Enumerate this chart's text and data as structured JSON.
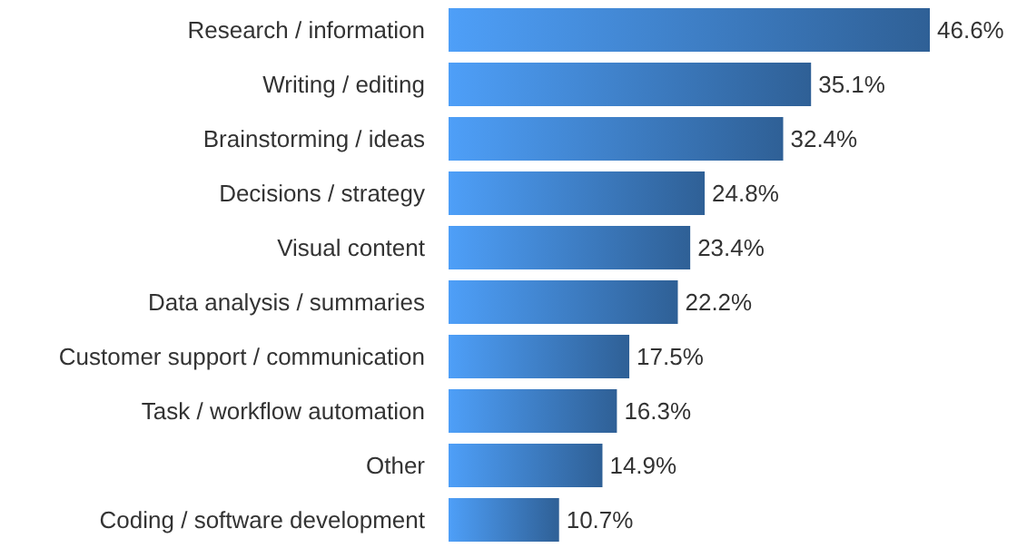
{
  "chart_data": {
    "type": "bar",
    "orientation": "horizontal",
    "categories": [
      "Research / information",
      "Writing / editing",
      "Brainstorming / ideas",
      "Decisions / strategy",
      "Visual content",
      "Data analysis / summaries",
      "Customer support / communication",
      "Task / workflow automation",
      "Other",
      "Coding / software development"
    ],
    "values": [
      46.6,
      35.1,
      32.4,
      24.8,
      23.4,
      22.2,
      17.5,
      16.3,
      14.9,
      10.7
    ],
    "value_labels": [
      "46.6%",
      "35.1%",
      "32.4%",
      "24.8%",
      "23.4%",
      "22.2%",
      "17.5%",
      "16.3%",
      "14.9%",
      "10.7%"
    ],
    "color": "#3f80c8",
    "tick_labels": "y"
  }
}
